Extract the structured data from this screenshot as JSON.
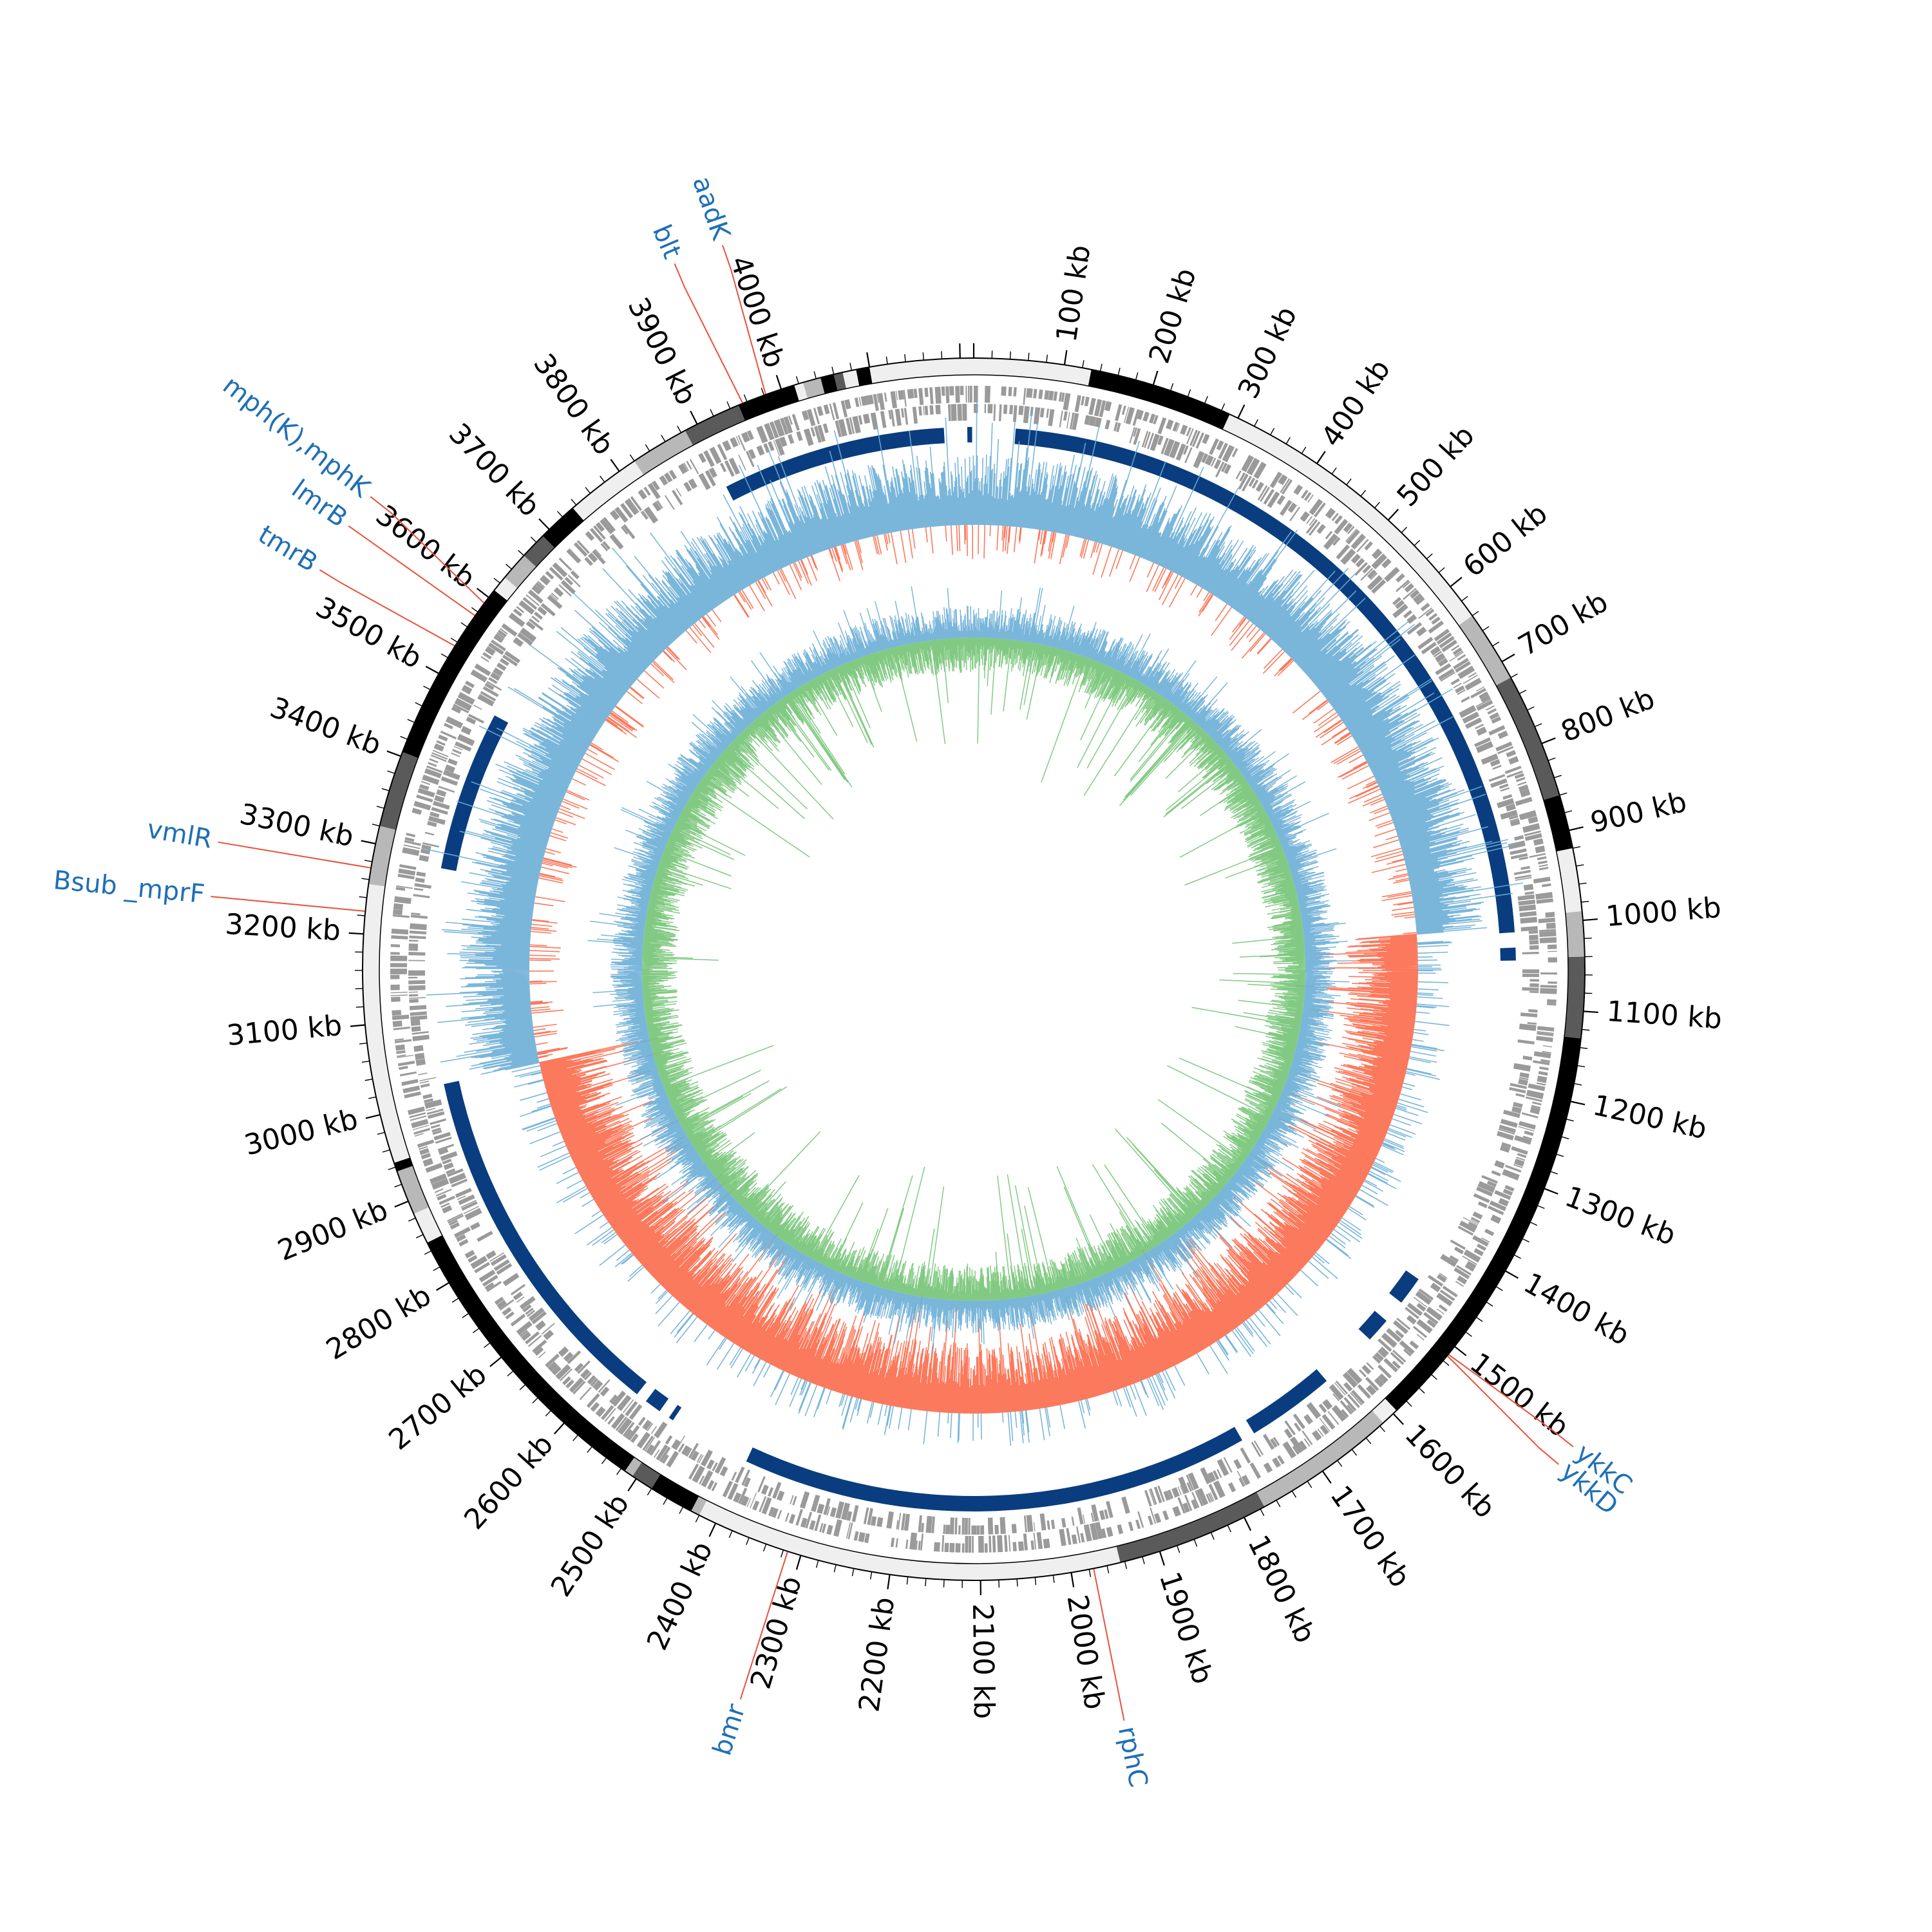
{
  "genome": {
    "total_kb": 4215,
    "tick_labels": [
      "100 kb",
      "200 kb",
      "300 kb",
      "400 kb",
      "500 kb",
      "600 kb",
      "700 kb",
      "800 kb",
      "900 kb",
      "1000 kb",
      "1100 kb",
      "1200 kb",
      "1300 kb",
      "1400 kb",
      "1500 kb",
      "1600 kb",
      "1700 kb",
      "1800 kb",
      "1900 kb",
      "2000 kb",
      "2100 kb",
      "2200 kb",
      "2300 kb",
      "2400 kb",
      "2500 kb",
      "2600 kb",
      "2700 kb",
      "2800 kb",
      "2900 kb",
      "3000 kb",
      "3100 kb",
      "3200 kb",
      "3300 kb",
      "3400 kb",
      "3500 kb",
      "3600 kb",
      "3700 kb",
      "3800 kb",
      "3900 kb",
      "4000 kb"
    ]
  },
  "colors": {
    "label_text": "#1f6fb5",
    "leader_line": "#e8513a",
    "block_dark": "#000000",
    "block_mid": "#5a5a5a",
    "block_light": "#b8b8b8",
    "block_pale": "#efefef",
    "feature_gray": "#9a9a9a",
    "backbone": "#0a3d7f",
    "skew_positive": "#6baed6",
    "skew_negative": "#fb6a4a",
    "gc_positive": "#6baed6",
    "gc_negative": "#74c476"
  },
  "contig_blocks": [
    {
      "start": 0,
      "end": 30,
      "shade": "pale"
    },
    {
      "start": 30,
      "end": 130,
      "shade": "pale"
    },
    {
      "start": 130,
      "end": 290,
      "shade": "dark"
    },
    {
      "start": 290,
      "end": 640,
      "shade": "pale"
    },
    {
      "start": 640,
      "end": 720,
      "shade": "light"
    },
    {
      "start": 720,
      "end": 860,
      "shade": "mid"
    },
    {
      "start": 860,
      "end": 920,
      "shade": "dark"
    },
    {
      "start": 920,
      "end": 990,
      "shade": "pale"
    },
    {
      "start": 990,
      "end": 1040,
      "shade": "light"
    },
    {
      "start": 1040,
      "end": 1130,
      "shade": "mid"
    },
    {
      "start": 1130,
      "end": 1595,
      "shade": "dark"
    },
    {
      "start": 1595,
      "end": 1615,
      "shade": "pale"
    },
    {
      "start": 1615,
      "end": 1775,
      "shade": "light"
    },
    {
      "start": 1775,
      "end": 1945,
      "shade": "mid"
    },
    {
      "start": 1945,
      "end": 2420,
      "shade": "pale"
    },
    {
      "start": 2420,
      "end": 2430,
      "shade": "light"
    },
    {
      "start": 2430,
      "end": 2480,
      "shade": "dark"
    },
    {
      "start": 2480,
      "end": 2505,
      "shade": "mid"
    },
    {
      "start": 2505,
      "end": 2515,
      "shade": "light"
    },
    {
      "start": 2515,
      "end": 2850,
      "shade": "dark"
    },
    {
      "start": 2850,
      "end": 2885,
      "shade": "pale"
    },
    {
      "start": 2885,
      "end": 2935,
      "shade": "light"
    },
    {
      "start": 2935,
      "end": 2945,
      "shade": "dark"
    },
    {
      "start": 2945,
      "end": 3255,
      "shade": "pale"
    },
    {
      "start": 3255,
      "end": 3320,
      "shade": "light"
    },
    {
      "start": 3320,
      "end": 3405,
      "shade": "mid"
    },
    {
      "start": 3405,
      "end": 3610,
      "shade": "dark"
    },
    {
      "start": 3610,
      "end": 3628,
      "shade": "pale"
    },
    {
      "start": 3628,
      "end": 3660,
      "shade": "light"
    },
    {
      "start": 3660,
      "end": 3690,
      "shade": "mid"
    },
    {
      "start": 3690,
      "end": 3735,
      "shade": "dark"
    },
    {
      "start": 3735,
      "end": 3820,
      "shade": "pale"
    },
    {
      "start": 3820,
      "end": 3885,
      "shade": "light"
    },
    {
      "start": 3885,
      "end": 3950,
      "shade": "mid"
    },
    {
      "start": 3950,
      "end": 4015,
      "shade": "dark"
    },
    {
      "start": 4015,
      "end": 4025,
      "shade": "pale"
    },
    {
      "start": 4025,
      "end": 4045,
      "shade": "light"
    },
    {
      "start": 4045,
      "end": 4060,
      "shade": "dark"
    },
    {
      "start": 4060,
      "end": 4070,
      "shade": "mid"
    },
    {
      "start": 4070,
      "end": 4085,
      "shade": "pale"
    },
    {
      "start": 4085,
      "end": 4100,
      "shade": "dark"
    },
    {
      "start": 4100,
      "end": 4215,
      "shade": "pale"
    }
  ],
  "backbone_gaps_kb": [
    0,
    50,
    1010,
    1025,
    1045,
    1460,
    1500,
    1525,
    1560,
    1630,
    1745,
    1758,
    2400,
    2500,
    2510,
    2520,
    2545,
    2555,
    3020,
    3285,
    3490,
    3895,
    4180,
    4205
  ],
  "gene_labels": [
    {
      "name": "aadK",
      "kb": 3982,
      "side": "outer",
      "offset": 1.5
    },
    {
      "name": "blt",
      "kb": 3955,
      "side": "outer",
      "offset": -1.5
    },
    {
      "name": "mph(K),mphK",
      "kb": 3592,
      "side": "outer",
      "offset": 2.5
    },
    {
      "name": "lmrB",
      "kb": 3575,
      "side": "outer",
      "offset": 0
    },
    {
      "name": "tmrB",
      "kb": 3535,
      "side": "outer",
      "offset": -1
    },
    {
      "name": "vmlR",
      "kb": 3273,
      "side": "outer",
      "offset": 0
    },
    {
      "name": "Bsub _mprF",
      "kb": 3225,
      "side": "outer",
      "offset": 0
    },
    {
      "name": "ykkD",
      "kb": 1513,
      "side": "outer",
      "offset": 2
    },
    {
      "name": "ykkC",
      "kb": 1511,
      "side": "outer",
      "offset": -1
    },
    {
      "name": "bmr",
      "kb": 2315,
      "side": "outer",
      "offset": 0
    },
    {
      "name": "rphC",
      "kb": 1975,
      "side": "outer",
      "offset": 0
    }
  ]
}
